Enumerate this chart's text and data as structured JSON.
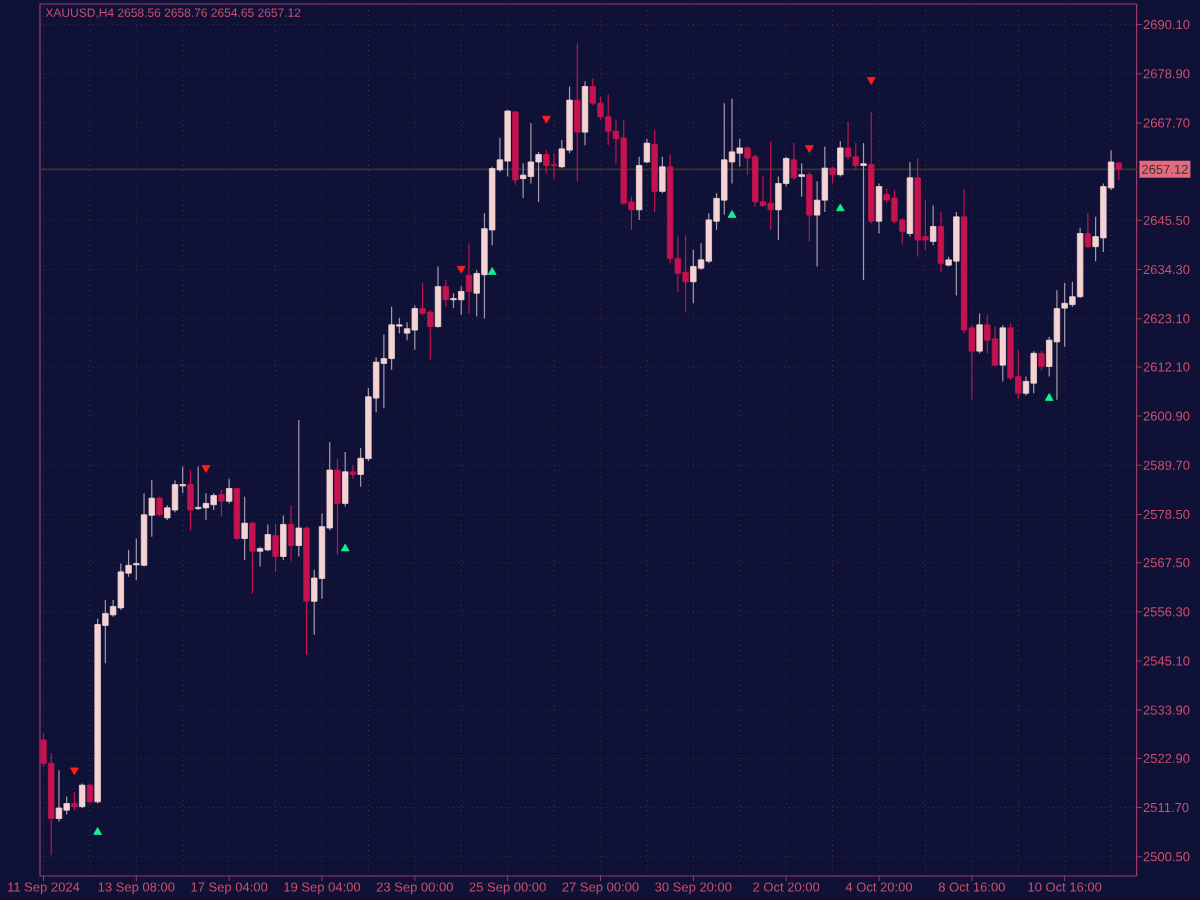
{
  "chart_data": {
    "type": "candlestick",
    "title": "XAUUSD,H4 2658.56 2658.76 2654.65 2657.12",
    "categories": [
      "11 Sep 2024",
      null,
      null,
      null,
      null,
      null,
      null,
      null,
      null,
      null,
      null,
      null,
      "13 Sep 08:00",
      null,
      null,
      null,
      null,
      null,
      null,
      null,
      null,
      null,
      null,
      null,
      "17 Sep 04:00",
      null,
      null,
      null,
      null,
      null,
      null,
      null,
      null,
      null,
      null,
      null,
      "19 Sep 04:00",
      null,
      null,
      null,
      null,
      null,
      null,
      null,
      null,
      null,
      null,
      null,
      "23 Sep 00:00",
      null,
      null,
      null,
      null,
      null,
      null,
      null,
      null,
      null,
      null,
      null,
      "25 Sep 00:00",
      null,
      null,
      null,
      null,
      null,
      null,
      null,
      null,
      null,
      null,
      null,
      "27 Sep 00:00",
      null,
      null,
      null,
      null,
      null,
      null,
      null,
      null,
      null,
      null,
      null,
      "30 Sep 20:00",
      null,
      null,
      null,
      null,
      null,
      null,
      null,
      null,
      null,
      null,
      null,
      "2 Oct 20:00",
      null,
      null,
      null,
      null,
      null,
      null,
      null,
      null,
      null,
      null,
      null,
      "4 Oct 20:00",
      null,
      null,
      null,
      null,
      null,
      null,
      null,
      null,
      null,
      null,
      null,
      "8 Oct 16:00",
      null,
      null,
      null,
      null,
      null,
      null,
      null,
      null,
      null,
      null,
      null,
      "10 Oct 16:00",
      null,
      null,
      null,
      null,
      null,
      null,
      null
    ],
    "ohlc": [
      [
        2527.1,
        2528.6,
        2521.0,
        2521.8
      ],
      [
        2521.8,
        2524.0,
        2500.8,
        2509.2
      ],
      [
        2509.2,
        2520.2,
        2508.5,
        2511.6
      ],
      [
        2511.1,
        2514.2,
        2510.1,
        2512.6
      ],
      [
        2512.6,
        2515.2,
        2511.1,
        2511.9
      ],
      [
        2511.9,
        2517.2,
        2511.6,
        2516.8
      ],
      [
        2516.8,
        2517.2,
        2512.6,
        2513.0
      ],
      [
        2513.0,
        2554.7,
        2512.6,
        2553.4
      ],
      [
        2553.2,
        2559.0,
        2544.6,
        2555.9
      ],
      [
        2555.6,
        2559.0,
        2555.2,
        2557.5
      ],
      [
        2557.2,
        2567.3,
        2556.7,
        2565.4
      ],
      [
        2565.1,
        2570.4,
        2564.3,
        2566.9
      ],
      [
        2567.0,
        2573.0,
        2563.5,
        2567.3
      ],
      [
        2566.9,
        2583.3,
        2566.6,
        2578.4
      ],
      [
        2578.3,
        2586.3,
        2573.4,
        2582.2
      ],
      [
        2582.2,
        2582.5,
        2578.0,
        2578.4
      ],
      [
        2577.7,
        2580.6,
        2577.2,
        2580.0
      ],
      [
        2579.5,
        2586.3,
        2579.0,
        2585.3
      ],
      [
        2585.0,
        2589.4,
        2583.3,
        2585.3
      ],
      [
        2585.3,
        2588.6,
        2574.9,
        2579.5
      ],
      [
        2579.8,
        2589.4,
        2579.5,
        2580.1
      ],
      [
        2580.0,
        2583.3,
        2577.2,
        2581.0
      ],
      [
        2580.7,
        2583.3,
        2579.5,
        2582.8
      ],
      [
        2583.0,
        2584.1,
        2578.0,
        2581.5
      ],
      [
        2581.5,
        2586.6,
        2581.0,
        2584.4
      ],
      [
        2584.4,
        2584.5,
        2572.7,
        2573.0
      ],
      [
        2573.0,
        2582.5,
        2568.1,
        2576.5
      ],
      [
        2576.5,
        2576.8,
        2560.5,
        2570.1
      ],
      [
        2570.1,
        2571.1,
        2566.6,
        2570.7
      ],
      [
        2570.4,
        2576.2,
        2570.1,
        2573.9
      ],
      [
        2573.7,
        2576.3,
        2565.4,
        2568.9
      ],
      [
        2568.9,
        2578.3,
        2568.1,
        2576.2
      ],
      [
        2576.2,
        2580.6,
        2567.8,
        2571.4
      ],
      [
        2571.4,
        2600.0,
        2568.9,
        2575.4
      ],
      [
        2575.4,
        2575.7,
        2546.5,
        2558.7
      ],
      [
        2558.7,
        2565.8,
        2551.1,
        2564.0
      ],
      [
        2563.9,
        2578.7,
        2559.3,
        2575.7
      ],
      [
        2575.4,
        2595.0,
        2574.9,
        2588.6
      ],
      [
        2588.6,
        2591.2,
        2569.3,
        2581.0
      ],
      [
        2581.0,
        2592.7,
        2580.3,
        2588.2
      ],
      [
        2588.2,
        2589.7,
        2586.6,
        2587.6
      ],
      [
        2587.6,
        2593.6,
        2584.8,
        2591.3
      ],
      [
        2591.2,
        2607.3,
        2590.6,
        2605.3
      ],
      [
        2605.0,
        2614.3,
        2601.8,
        2613.2
      ],
      [
        2612.9,
        2619.5,
        2602.7,
        2614.0
      ],
      [
        2614.0,
        2625.8,
        2611.4,
        2621.7
      ],
      [
        2621.4,
        2623.3,
        2619.8,
        2621.7
      ],
      [
        2619.8,
        2622.3,
        2618.2,
        2620.8
      ],
      [
        2620.5,
        2626.1,
        2616.0,
        2625.4
      ],
      [
        2625.4,
        2631.2,
        2624.0,
        2624.3
      ],
      [
        2624.6,
        2625.1,
        2613.7,
        2621.3
      ],
      [
        2621.3,
        2635.0,
        2621.0,
        2630.4
      ],
      [
        2630.4,
        2631.9,
        2625.8,
        2627.4
      ],
      [
        2627.4,
        2628.9,
        2625.5,
        2627.7
      ],
      [
        2627.4,
        2630.4,
        2624.0,
        2629.3
      ],
      [
        2633.0,
        2640.3,
        2624.3,
        2629.3
      ],
      [
        2628.9,
        2634.2,
        2623.6,
        2633.4
      ],
      [
        2633.1,
        2647.1,
        2623.1,
        2643.6
      ],
      [
        2643.3,
        2657.7,
        2639.8,
        2657.3
      ],
      [
        2657.0,
        2664.3,
        2656.5,
        2659.3
      ],
      [
        2659.0,
        2670.7,
        2655.5,
        2670.4
      ],
      [
        2670.2,
        2670.4,
        2653.6,
        2654.7
      ],
      [
        2655.0,
        2658.5,
        2650.6,
        2655.8
      ],
      [
        2655.5,
        2667.6,
        2653.9,
        2658.8
      ],
      [
        2658.8,
        2661.1,
        2649.7,
        2660.5
      ],
      [
        2660.5,
        2661.5,
        2656.2,
        2658.0
      ],
      [
        2658.2,
        2660.8,
        2655.0,
        2657.9
      ],
      [
        2657.7,
        2663.8,
        2657.4,
        2661.8
      ],
      [
        2661.5,
        2676.0,
        2660.8,
        2672.9
      ],
      [
        2672.9,
        2685.8,
        2654.4,
        2665.6
      ],
      [
        2665.6,
        2677.2,
        2662.6,
        2676.0
      ],
      [
        2676.0,
        2677.8,
        2671.7,
        2672.2
      ],
      [
        2672.2,
        2673.7,
        2668.4,
        2669.1
      ],
      [
        2669.1,
        2674.2,
        2662.6,
        2665.8
      ],
      [
        2665.8,
        2668.4,
        2658.5,
        2664.1
      ],
      [
        2664.3,
        2668.4,
        2649.1,
        2649.4
      ],
      [
        2649.7,
        2650.9,
        2643.3,
        2647.9
      ],
      [
        2647.9,
        2660.0,
        2645.6,
        2658.0
      ],
      [
        2658.8,
        2664.1,
        2658.5,
        2663.1
      ],
      [
        2662.8,
        2666.1,
        2647.4,
        2652.1
      ],
      [
        2652.1,
        2660.0,
        2651.7,
        2657.7
      ],
      [
        2657.7,
        2660.5,
        2635.7,
        2636.8
      ],
      [
        2636.8,
        2641.8,
        2629.2,
        2633.4
      ],
      [
        2633.7,
        2642.1,
        2624.6,
        2631.5
      ],
      [
        2631.5,
        2638.8,
        2626.6,
        2635.0
      ],
      [
        2634.6,
        2640.3,
        2634.2,
        2636.5
      ],
      [
        2636.2,
        2647.1,
        2635.7,
        2645.6
      ],
      [
        2645.3,
        2651.7,
        2643.3,
        2650.5
      ],
      [
        2650.1,
        2672.2,
        2646.8,
        2659.3
      ],
      [
        2658.8,
        2673.2,
        2653.9,
        2661.1
      ],
      [
        2660.8,
        2664.1,
        2657.7,
        2662.0
      ],
      [
        2662.0,
        2662.3,
        2655.9,
        2659.7
      ],
      [
        2660.0,
        2660.5,
        2648.6,
        2649.7
      ],
      [
        2649.7,
        2655.5,
        2648.6,
        2648.9
      ],
      [
        2649.4,
        2663.5,
        2643.3,
        2647.9
      ],
      [
        2647.9,
        2655.5,
        2641.0,
        2653.9
      ],
      [
        2653.9,
        2660.0,
        2653.2,
        2659.6
      ],
      [
        2659.3,
        2663.1,
        2654.7,
        2655.2
      ],
      [
        2655.5,
        2658.5,
        2650.9,
        2655.9
      ],
      [
        2655.9,
        2656.5,
        2640.7,
        2646.7
      ],
      [
        2646.7,
        2654.4,
        2635.0,
        2650.1
      ],
      [
        2650.1,
        2662.3,
        2647.4,
        2657.4
      ],
      [
        2657.4,
        2657.7,
        2653.9,
        2655.9
      ],
      [
        2655.9,
        2663.5,
        2655.5,
        2662.0
      ],
      [
        2662.0,
        2667.9,
        2659.3,
        2660.0
      ],
      [
        2660.0,
        2663.1,
        2657.0,
        2658.0
      ],
      [
        2658.0,
        2663.1,
        2631.9,
        2658.4
      ],
      [
        2658.2,
        2670.2,
        2644.8,
        2645.3
      ],
      [
        2645.3,
        2653.9,
        2642.5,
        2653.2
      ],
      [
        2651.4,
        2652.7,
        2649.4,
        2650.1
      ],
      [
        2650.6,
        2652.4,
        2644.8,
        2645.3
      ],
      [
        2645.6,
        2646.0,
        2640.0,
        2643.0
      ],
      [
        2642.5,
        2658.8,
        2641.8,
        2655.2
      ],
      [
        2655.2,
        2659.6,
        2637.2,
        2641.0
      ],
      [
        2641.8,
        2650.1,
        2638.8,
        2641.0
      ],
      [
        2640.7,
        2648.9,
        2639.8,
        2644.1
      ],
      [
        2644.1,
        2647.4,
        2633.7,
        2635.7
      ],
      [
        2635.3,
        2637.2,
        2635.0,
        2636.5
      ],
      [
        2636.2,
        2647.4,
        2628.4,
        2646.3
      ],
      [
        2646.3,
        2652.7,
        2619.8,
        2620.5
      ],
      [
        2621.0,
        2621.6,
        2604.6,
        2615.7
      ],
      [
        2615.7,
        2624.3,
        2615.2,
        2621.7
      ],
      [
        2621.7,
        2624.0,
        2615.2,
        2618.2
      ],
      [
        2618.5,
        2621.3,
        2612.2,
        2612.5
      ],
      [
        2612.5,
        2621.6,
        2608.8,
        2621.0
      ],
      [
        2621.0,
        2622.0,
        2609.1,
        2609.6
      ],
      [
        2609.9,
        2616.0,
        2604.9,
        2606.1
      ],
      [
        2606.1,
        2609.9,
        2605.6,
        2608.8
      ],
      [
        2608.4,
        2615.7,
        2606.1,
        2615.2
      ],
      [
        2615.2,
        2615.7,
        2611.4,
        2612.2
      ],
      [
        2612.2,
        2619.0,
        2609.9,
        2618.2
      ],
      [
        2617.8,
        2629.6,
        2604.6,
        2625.4
      ],
      [
        2625.5,
        2631.2,
        2616.7,
        2626.6
      ],
      [
        2626.3,
        2631.5,
        2625.8,
        2628.1
      ],
      [
        2628.1,
        2643.8,
        2627.8,
        2642.5
      ],
      [
        2642.5,
        2647.1,
        2639.2,
        2639.5
      ],
      [
        2639.5,
        2646.3,
        2636.2,
        2641.8
      ],
      [
        2641.5,
        2653.9,
        2638.3,
        2653.2
      ],
      [
        2652.9,
        2661.5,
        2652.4,
        2658.8
      ],
      [
        2658.56,
        2658.76,
        2654.65,
        2657.12
      ]
    ],
    "colors": [
      "#c4134f",
      "#c4134f",
      "#f5d3d3",
      "#f5d3d3",
      "#c4134f",
      "#f5d3d3",
      "#c4134f",
      "#f5d3d3",
      "#f5d3d3",
      "#f5d3d3",
      "#f5d3d3",
      "#f5d3d3",
      "#f5d3d3",
      "#f5d3d3",
      "#f5d3d3",
      "#c4134f",
      "#f5d3d3",
      "#f5d3d3",
      "#f5d3d3",
      "#c4134f",
      "#f5d3d3",
      "#f5d3d3",
      "#f5d3d3",
      "#c4134f",
      "#f5d3d3",
      "#c4134f",
      "#f5d3d3",
      "#c4134f",
      "#f5d3d3",
      "#f5d3d3",
      "#c4134f",
      "#f5d3d3",
      "#c4134f",
      "#f5d3d3",
      "#c4134f",
      "#f5d3d3",
      "#f5d3d3",
      "#f5d3d3",
      "#c4134f",
      "#f5d3d3",
      "#c4134f",
      "#f5d3d3",
      "#f5d3d3",
      "#f5d3d3",
      "#f5d3d3",
      "#f5d3d3",
      "#f5d3d3",
      "#f5d3d3",
      "#f5d3d3",
      "#c4134f",
      "#c4134f",
      "#f5d3d3",
      "#c4134f",
      "#f5d3d3",
      "#f5d3d3",
      "#c4134f",
      "#f5d3d3",
      "#f5d3d3",
      "#f5d3d3",
      "#f5d3d3",
      "#f5d3d3",
      "#c4134f",
      "#f5d3d3",
      "#f5d3d3",
      "#f5d3d3",
      "#c4134f",
      "#c4134f",
      "#f5d3d3",
      "#f5d3d3",
      "#c4134f",
      "#f5d3d3",
      "#c4134f",
      "#c4134f",
      "#c4134f",
      "#c4134f",
      "#c4134f",
      "#c4134f",
      "#f5d3d3",
      "#f5d3d3",
      "#c4134f",
      "#f5d3d3",
      "#c4134f",
      "#c4134f",
      "#c4134f",
      "#f5d3d3",
      "#f5d3d3",
      "#f5d3d3",
      "#f5d3d3",
      "#f5d3d3",
      "#f5d3d3",
      "#f5d3d3",
      "#c4134f",
      "#c4134f",
      "#c4134f",
      "#c4134f",
      "#f5d3d3",
      "#f5d3d3",
      "#c4134f",
      "#f5d3d3",
      "#c4134f",
      "#f5d3d3",
      "#f5d3d3",
      "#c4134f",
      "#f5d3d3",
      "#c4134f",
      "#c4134f",
      "#f5d3d3",
      "#c4134f",
      "#f5d3d3",
      "#c4134f",
      "#c4134f",
      "#c4134f",
      "#f5d3d3",
      "#c4134f",
      "#c4134f",
      "#f5d3d3",
      "#c4134f",
      "#f5d3d3",
      "#f5d3d3",
      "#c4134f",
      "#c4134f",
      "#f5d3d3",
      "#c4134f",
      "#c4134f",
      "#f5d3d3",
      "#c4134f",
      "#c4134f",
      "#f5d3d3",
      "#f5d3d3",
      "#c4134f",
      "#f5d3d3",
      "#f5d3d3",
      "#f5d3d3",
      "#f5d3d3",
      "#f5d3d3",
      "#c4134f",
      "#f5d3d3",
      "#f5d3d3",
      "#f5d3d3",
      "#c4134f"
    ],
    "series": [
      {
        "type": "scatter",
        "color": "#ff1e1e",
        "marker": "triangle",
        "values": [
          null,
          null,
          null,
          null,
          2520.2,
          null,
          null,
          null,
          null,
          null,
          null,
          null,
          null,
          null,
          null,
          null,
          null,
          null,
          null,
          null,
          null,
          2589.1,
          null,
          null,
          null,
          null,
          null,
          null,
          null,
          null,
          null,
          null,
          null,
          null,
          null,
          null,
          null,
          null,
          null,
          null,
          null,
          null,
          null,
          null,
          null,
          null,
          null,
          null,
          null,
          null,
          null,
          null,
          null,
          null,
          2634.5,
          null,
          null,
          null,
          null,
          null,
          null,
          null,
          null,
          null,
          null,
          2668.7,
          null,
          null,
          null,
          null,
          null,
          null,
          null,
          null,
          null,
          null,
          null,
          null,
          null,
          null,
          null,
          null,
          null,
          null,
          null,
          null,
          null,
          null,
          null,
          null,
          null,
          null,
          null,
          null,
          null,
          null,
          null,
          null,
          null,
          2662.0,
          null,
          null,
          null,
          null,
          null,
          null,
          null,
          2677.5,
          null,
          null,
          null,
          null,
          null,
          null,
          null,
          null,
          null,
          null,
          null,
          null,
          null,
          null,
          null,
          null,
          null,
          null,
          null,
          null,
          null,
          null,
          null,
          null,
          null,
          null,
          null,
          null,
          null,
          null,
          null,
          null
        ]
      },
      {
        "type": "scatter",
        "color": "#14f08c",
        "marker": "triangle",
        "values": [
          null,
          null,
          null,
          null,
          null,
          null,
          null,
          2506.1,
          null,
          null,
          null,
          null,
          null,
          null,
          null,
          null,
          null,
          null,
          null,
          null,
          null,
          null,
          null,
          null,
          null,
          null,
          null,
          null,
          null,
          null,
          null,
          null,
          null,
          null,
          null,
          null,
          null,
          null,
          null,
          2570.7,
          null,
          null,
          null,
          null,
          null,
          null,
          null,
          null,
          null,
          null,
          null,
          null,
          null,
          null,
          null,
          null,
          null,
          null,
          2633.7,
          null,
          null,
          null,
          null,
          null,
          null,
          null,
          null,
          null,
          null,
          null,
          null,
          null,
          null,
          null,
          null,
          null,
          null,
          null,
          null,
          null,
          null,
          null,
          null,
          null,
          null,
          null,
          null,
          null,
          null,
          2646.7,
          null,
          null,
          null,
          null,
          null,
          null,
          null,
          null,
          null,
          null,
          null,
          null,
          null,
          2648.2,
          null,
          null,
          null,
          null,
          null,
          null,
          null,
          null,
          null,
          null,
          null,
          null,
          null,
          null,
          null,
          null,
          null,
          null,
          null,
          null,
          null,
          null,
          null,
          null,
          null,
          null,
          2605.0,
          null,
          null,
          null,
          null,
          null,
          null,
          null,
          null,
          null
        ]
      }
    ],
    "ylim": [
      2496.1,
      2694.8
    ],
    "yticks": [
      {
        "value": 2500.5,
        "label": "2500.50"
      },
      {
        "value": 2511.7,
        "label": "2511.70"
      },
      {
        "value": 2522.9,
        "label": "2522.90"
      },
      {
        "value": 2533.9,
        "label": "2533.90"
      },
      {
        "value": 2545.1,
        "label": "2545.10"
      },
      {
        "value": 2556.3,
        "label": "2556.30"
      },
      {
        "value": 2567.5,
        "label": "2567.50"
      },
      {
        "value": 2578.5,
        "label": "2578.50"
      },
      {
        "value": 2589.7,
        "label": "2589.70"
      },
      {
        "value": 2600.9,
        "label": "2600.90"
      },
      {
        "value": 2612.1,
        "label": "2612.10"
      },
      {
        "value": 2623.1,
        "label": "2623.10"
      },
      {
        "value": 2634.3,
        "label": "2634.30"
      },
      {
        "value": 2645.5,
        "label": "2645.50"
      },
      {
        "value": 2667.7,
        "label": "2667.70"
      },
      {
        "value": 2678.9,
        "label": "2678.90"
      },
      {
        "value": 2690.1,
        "label": "2690.10"
      }
    ],
    "grid": true,
    "ref_lines": [
      {
        "axis": "y",
        "value": 2657.12,
        "label": "2657.12",
        "color": "#3e3326"
      }
    ]
  }
}
